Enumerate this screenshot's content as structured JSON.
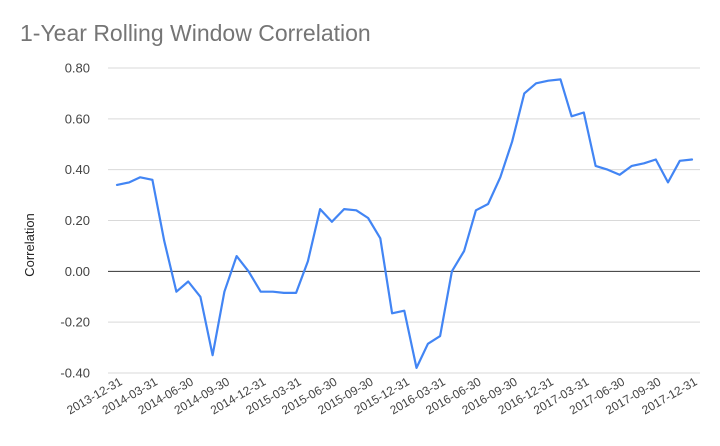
{
  "chart_data": {
    "type": "line",
    "title": "1-Year Rolling Window Correlation",
    "xlabel": "",
    "ylabel": "Correlation",
    "ylim": [
      -0.4,
      0.8
    ],
    "y_ticks": [
      "0.80",
      "0.60",
      "0.40",
      "0.20",
      "0.00",
      "-0.20",
      "-0.40"
    ],
    "y_tick_values": [
      0.8,
      0.6,
      0.4,
      0.2,
      0.0,
      -0.2,
      -0.4
    ],
    "grid": true,
    "legend": "none",
    "x_tick_labels": [
      "2013-12-31",
      "2014-03-31",
      "2014-06-30",
      "2014-09-30",
      "2014-12-31",
      "2015-03-31",
      "2015-06-30",
      "2015-09-30",
      "2015-12-31",
      "2016-03-31",
      "2016-06-30",
      "2016-09-30",
      "2016-12-31",
      "2017-03-31",
      "2017-06-30",
      "2017-09-30",
      "2017-12-31"
    ],
    "x": [
      "2013-12-31",
      "2014-01-31",
      "2014-02-28",
      "2014-03-31",
      "2014-04-30",
      "2014-05-31",
      "2014-06-30",
      "2014-07-31",
      "2014-08-31",
      "2014-09-30",
      "2014-10-31",
      "2014-11-30",
      "2014-12-31",
      "2015-01-31",
      "2015-02-28",
      "2015-03-31",
      "2015-04-30",
      "2015-05-31",
      "2015-06-30",
      "2015-07-31",
      "2015-08-31",
      "2015-09-30",
      "2015-10-31",
      "2015-11-30",
      "2015-12-31",
      "2016-01-31",
      "2016-02-29",
      "2016-03-31",
      "2016-04-30",
      "2016-05-31",
      "2016-06-30",
      "2016-07-31",
      "2016-08-31",
      "2016-09-30",
      "2016-10-31",
      "2016-11-30",
      "2016-12-31",
      "2017-01-31",
      "2017-02-28",
      "2017-03-31",
      "2017-04-30",
      "2017-05-31",
      "2017-06-30",
      "2017-07-31",
      "2017-08-31",
      "2017-09-30",
      "2017-10-31",
      "2017-11-30",
      "2017-12-31"
    ],
    "series": [
      {
        "values": [
          0.34,
          0.35,
          0.37,
          0.36,
          0.12,
          -0.08,
          -0.04,
          -0.1,
          -0.33,
          -0.08,
          0.06,
          0.0,
          -0.08,
          -0.08,
          -0.085,
          -0.085,
          0.04,
          0.245,
          0.195,
          0.245,
          0.24,
          0.21,
          0.13,
          -0.165,
          -0.155,
          -0.38,
          -0.285,
          -0.255,
          0.0,
          0.08,
          0.24,
          0.265,
          0.37,
          0.51,
          0.7,
          0.74,
          0.75,
          0.755,
          0.61,
          0.625,
          0.415,
          0.4,
          0.38,
          0.415,
          0.425,
          0.44,
          0.35,
          0.435,
          0.44
        ]
      }
    ],
    "line_color": "#4285f4"
  }
}
